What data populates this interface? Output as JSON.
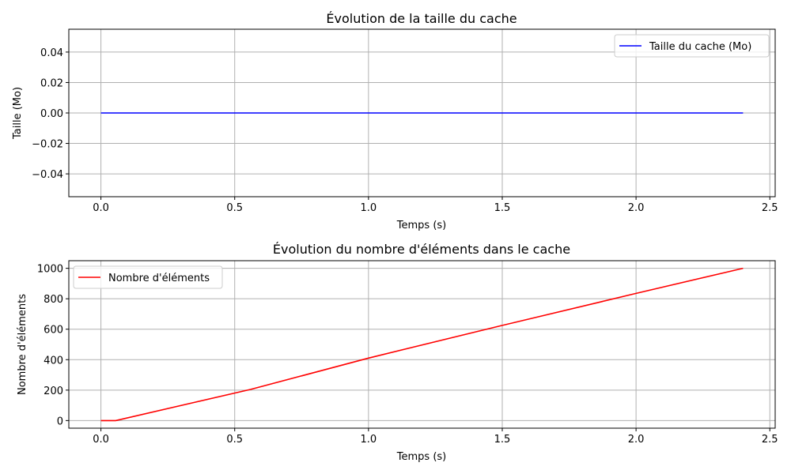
{
  "chart_data": [
    {
      "type": "line",
      "title": "Évolution de la taille du cache",
      "xlabel": "Temps (s)",
      "ylabel": "Taille (Mo)",
      "xlim": [
        -0.12,
        2.52
      ],
      "ylim": [
        -0.055,
        0.055
      ],
      "xticks": [
        0.0,
        0.5,
        1.0,
        1.5,
        2.0,
        2.5
      ],
      "xtick_labels": [
        "0.0",
        "0.5",
        "1.0",
        "1.5",
        "2.0",
        "2.5"
      ],
      "yticks": [
        0.04,
        0.02,
        0.0,
        -0.02,
        -0.04
      ],
      "ytick_labels": [
        "0.04",
        "0.02",
        "0.00",
        "−0.02",
        "−0.04"
      ],
      "grid": true,
      "legend": "top-right",
      "series": [
        {
          "name": "Taille du cache (Mo)",
          "color": "#0000ff",
          "x": [
            0.0,
            2.4
          ],
          "y": [
            0.0,
            0.0
          ]
        }
      ]
    },
    {
      "type": "line",
      "title": "Évolution du nombre d'éléments dans le cache",
      "xlabel": "Temps (s)",
      "ylabel": "Nombre d'éléments",
      "xlim": [
        -0.12,
        2.52
      ],
      "ylim": [
        -50,
        1050
      ],
      "xticks": [
        0.0,
        0.5,
        1.0,
        1.5,
        2.0,
        2.5
      ],
      "xtick_labels": [
        "0.0",
        "0.5",
        "1.0",
        "1.5",
        "2.0",
        "2.5"
      ],
      "yticks": [
        0,
        200,
        400,
        600,
        800,
        1000
      ],
      "ytick_labels": [
        "0",
        "200",
        "400",
        "600",
        "800",
        "1000"
      ],
      "grid": true,
      "legend": "top-left",
      "series": [
        {
          "name": "Nombre d'éléments",
          "color": "#ff0000",
          "x": [
            0.0,
            0.055,
            0.56,
            1.0,
            1.5,
            2.0,
            2.4
          ],
          "y": [
            0,
            0,
            205,
            410,
            625,
            835,
            1000
          ]
        }
      ]
    }
  ]
}
